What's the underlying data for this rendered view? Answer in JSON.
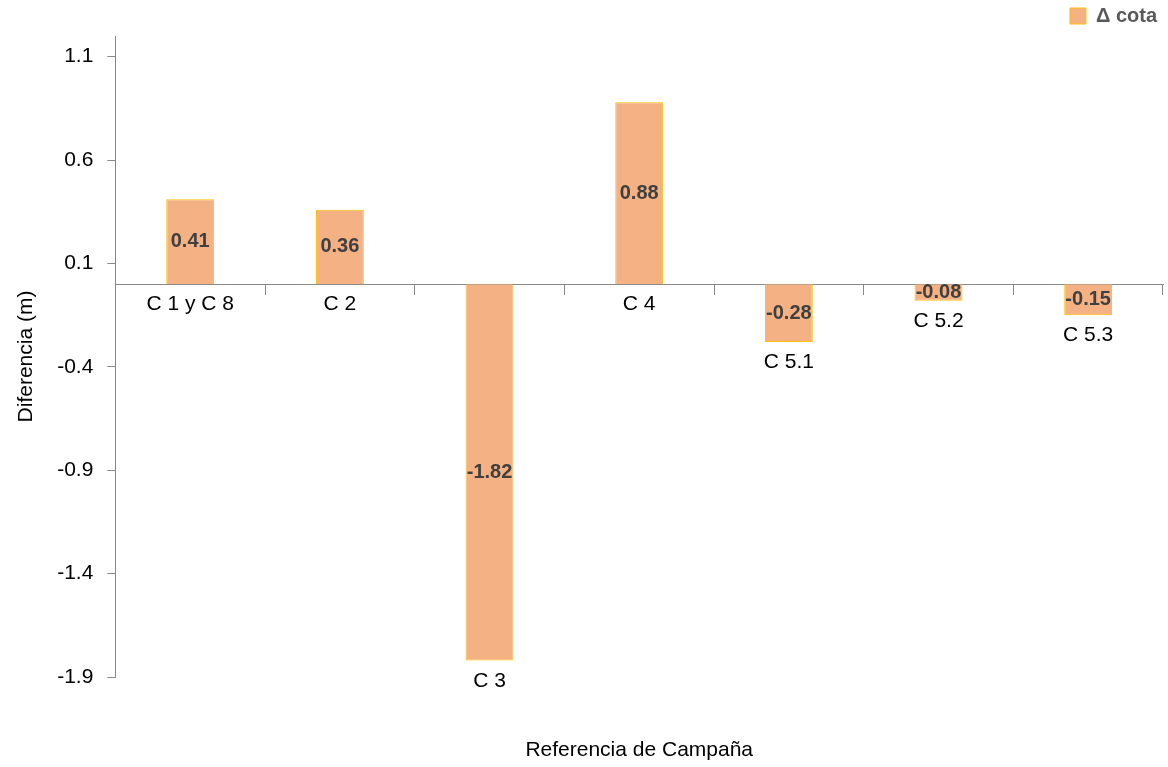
{
  "chart_data": {
    "type": "bar",
    "xlabel": "Referencia de Campaña",
    "ylabel": "Diferencia (m)",
    "categories": [
      "C 1 y C 8",
      "C 2",
      "C 3",
      "C 4",
      "C 5.1",
      "C 5.2",
      "C 5.3"
    ],
    "series": [
      {
        "name": "Δ cota",
        "color": "#f4b183",
        "values": [
          0.41,
          0.36,
          -1.82,
          0.88,
          -0.28,
          -0.08,
          -0.15
        ]
      }
    ],
    "ylim": [
      -1.9,
      1.2
    ],
    "yticks": [
      -1.9,
      -1.4,
      -0.9,
      -0.4,
      0.1,
      0.6,
      1.1
    ],
    "data_labels": true,
    "legend": "top right",
    "grid": false
  }
}
